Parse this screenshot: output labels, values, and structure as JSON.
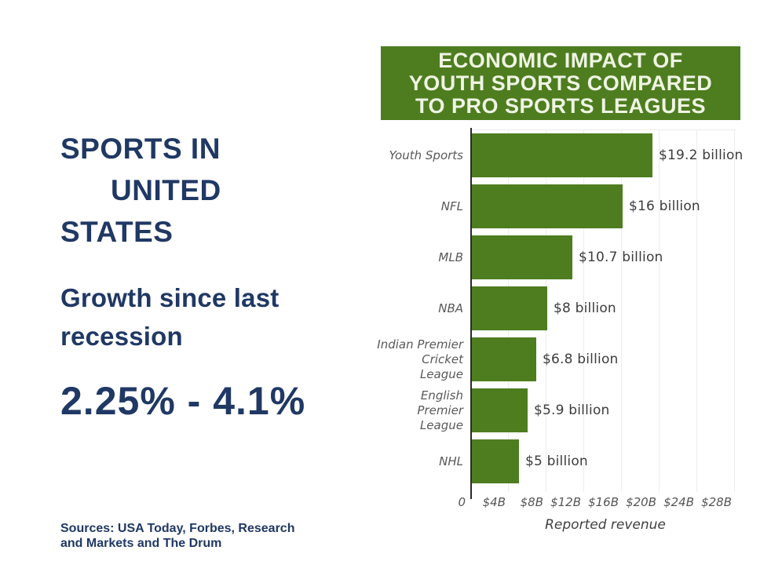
{
  "slide": {
    "title_line1": "SPORTS IN",
    "title_line2": "UNITED",
    "title_line3": "STATES",
    "subtitle": "Growth since last recession",
    "stat": "2.25% - 4.1%",
    "sources": "Sources: USA Today, Forbes, Research and Markets and The Drum",
    "text_color": "#203864"
  },
  "chart_data": {
    "type": "bar",
    "orientation": "horizontal",
    "title": "ECONOMIC IMPACT OF YOUTH SPORTS COMPARED TO PRO SPORTS LEAGUES",
    "title_lines": [
      "ECONOMIC IMPACT OF",
      "YOUTH SPORTS COMPARED",
      "TO PRO SPORTS LEAGUES"
    ],
    "categories": [
      "Youth Sports",
      "NFL",
      "MLB",
      "NBA",
      "Indian Premier Cricket League",
      "English Premier League",
      "NHL"
    ],
    "values": [
      19.2,
      16,
      10.7,
      8,
      6.8,
      5.9,
      5
    ],
    "value_labels": [
      "$19.2 billion",
      "$16 billion",
      "$10.7 billion",
      "$8 billion",
      "$6.8 billion",
      "$5.9 billion",
      "$5 billion"
    ],
    "xlabel": "Reported revenue",
    "x_ticks": [
      {
        "label": "0",
        "value": 0
      },
      {
        "label": "$4B",
        "value": 4
      },
      {
        "label": "$8B",
        "value": 8
      },
      {
        "label": "$12B",
        "value": 12
      },
      {
        "label": "$16B",
        "value": 16
      },
      {
        "label": "$20B",
        "value": 20
      },
      {
        "label": "$24B",
        "value": 24
      },
      {
        "label": "$28B",
        "value": 28
      }
    ],
    "xlim": [
      0,
      28.5
    ],
    "grid": true,
    "legend": "none",
    "colors": {
      "bar": "#4e7d20",
      "banner_bg": "#4e7d20",
      "banner_text": "#eff4e4",
      "category_label": "#595959",
      "value_label": "#3c3c3c",
      "tick_label": "#555555",
      "axis_line": "#2a2a2a",
      "gridline": "#ececec"
    }
  }
}
